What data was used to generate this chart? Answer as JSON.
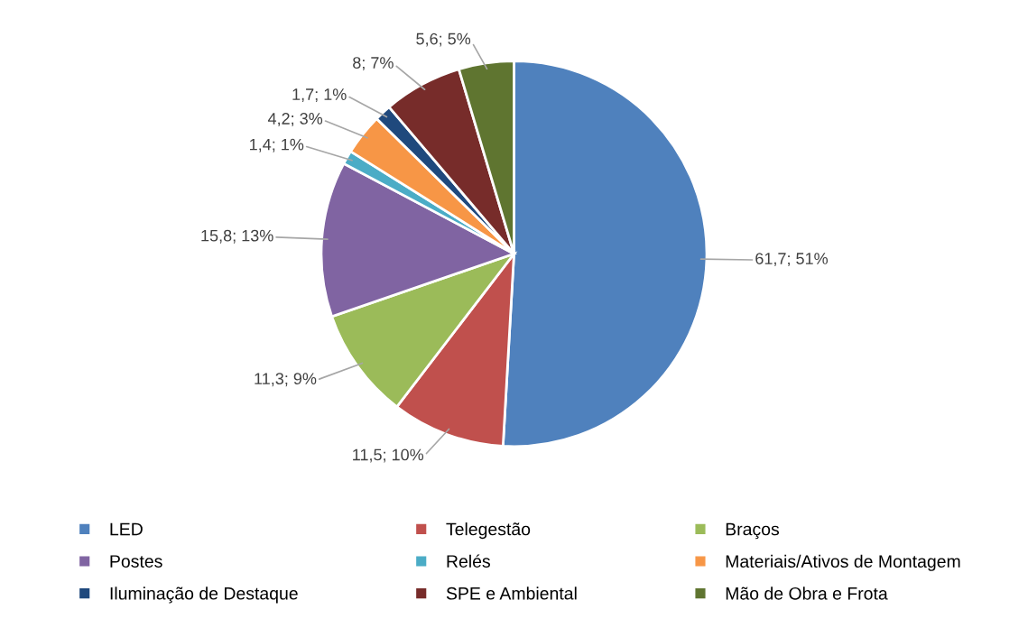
{
  "chart_data": {
    "type": "pie",
    "categories": [
      "LED",
      "Telegestão",
      "Braços",
      "Postes",
      "Relés",
      "Materiais/Ativos de Montagem",
      "Iluminação de Destaque",
      "SPE e Ambiental",
      "Mão de Obra e Frota"
    ],
    "values": [
      61.7,
      11.5,
      11.3,
      15.8,
      1.4,
      4.2,
      1.7,
      8,
      5.6
    ],
    "value_labels": [
      "61,7; 51%",
      "11,5; 10%",
      "11,3; 9%",
      "15,8; 13%",
      "1,4; 1%",
      "4,2; 3%",
      "1,7; 1%",
      "8; 7%",
      "5,6; 5%"
    ],
    "colors": [
      "#4f81bd",
      "#c0504d",
      "#9bbb59",
      "#8064a2",
      "#4bacc6",
      "#f79646",
      "#1f497d",
      "#772c2a",
      "#5f7530"
    ],
    "legend": "bottom"
  }
}
